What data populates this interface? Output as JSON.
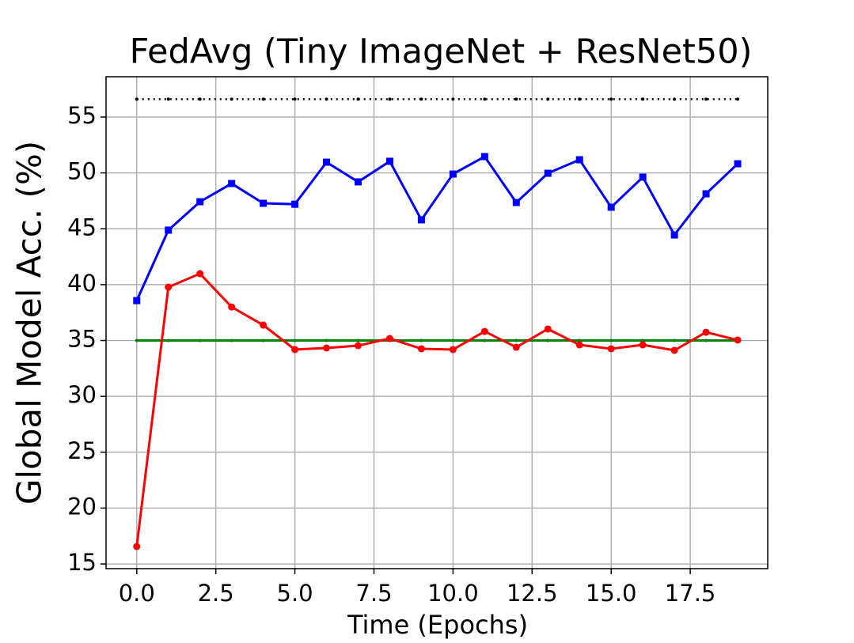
{
  "chart_data": {
    "type": "line",
    "title": "FedAvg (Tiny ImageNet + ResNet50)",
    "xlabel": "Time (Epochs)",
    "ylabel": "Global Model Acc. (%)",
    "x": [
      0,
      1,
      2,
      3,
      4,
      5,
      6,
      7,
      8,
      9,
      10,
      11,
      12,
      13,
      14,
      15,
      16,
      17,
      18,
      19
    ],
    "xlim": [
      -0.97,
      19.95
    ],
    "xticks": [
      {
        "value": 0,
        "label": "0.0"
      },
      2.5,
      {
        "value": 5,
        "label": "5.0"
      },
      7.5,
      {
        "value": 10,
        "label": "10.0"
      },
      12.5,
      {
        "value": 15,
        "label": "15.0"
      },
      17.5
    ],
    "ylim": [
      14.58,
      58.61
    ],
    "yticks": [
      15,
      20,
      25,
      30,
      35,
      40,
      45,
      50,
      55
    ],
    "grid": true,
    "series": [
      {
        "color": "#000000",
        "marker": "dot",
        "dash": "dotted",
        "values": [
          56.6,
          56.6,
          56.6,
          56.6,
          56.6,
          56.6,
          56.6,
          56.6,
          56.6,
          56.6,
          56.6,
          56.6,
          56.6,
          56.6,
          56.6,
          56.6,
          56.6,
          56.6,
          56.6,
          56.6
        ]
      },
      {
        "color": "#0000ff",
        "marker": "square",
        "dash": "solid",
        "values": [
          38.57,
          44.88,
          47.42,
          49.05,
          47.28,
          47.2,
          50.96,
          49.2,
          51.04,
          45.8,
          49.9,
          51.46,
          47.35,
          49.97,
          51.18,
          46.93,
          49.62,
          44.45,
          48.13,
          50.82
        ]
      },
      {
        "color": "#008000",
        "marker": "dot",
        "dash": "solid",
        "values": [
          35,
          35,
          35,
          35,
          35,
          35,
          35,
          35,
          35,
          35,
          35,
          35,
          35,
          35,
          35,
          35,
          35,
          35,
          35,
          35
        ]
      },
      {
        "color": "#ff0000",
        "marker": "circle",
        "dash": "solid",
        "values": [
          16.56,
          39.78,
          40.98,
          38.0,
          36.38,
          34.19,
          34.33,
          34.54,
          35.18,
          34.26,
          34.19,
          35.81,
          34.4,
          36.03,
          34.61,
          34.26,
          34.61,
          34.12,
          35.74,
          35.04
        ]
      }
    ]
  }
}
